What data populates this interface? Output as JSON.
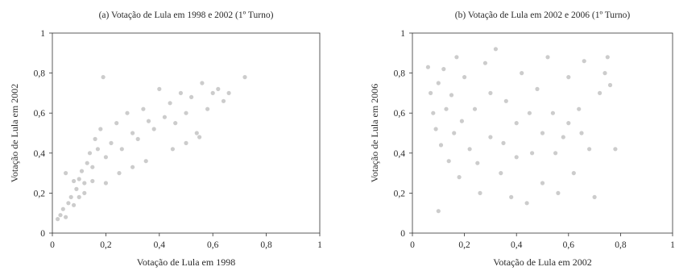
{
  "chart_data": [
    {
      "type": "scatter",
      "title": "(a) Votação de Lula em 1998 e 2002 (1º Turno)",
      "xlabel": "Votação de Lula em 1998",
      "ylabel": "Votação de Lula em 2002",
      "xlim": [
        0,
        1
      ],
      "ylim": [
        0,
        1
      ],
      "xticks": [
        "0",
        "0,2",
        "0,4",
        "0,6",
        "0,8",
        "1"
      ],
      "yticks": [
        "0",
        "0,2",
        "0,4",
        "0,6",
        "0,8",
        "1"
      ],
      "grid": false,
      "marker_color": "#cccccc",
      "points": [
        [
          0.02,
          0.07
        ],
        [
          0.03,
          0.09
        ],
        [
          0.04,
          0.12
        ],
        [
          0.05,
          0.08
        ],
        [
          0.06,
          0.15
        ],
        [
          0.07,
          0.18
        ],
        [
          0.08,
          0.14
        ],
        [
          0.09,
          0.22
        ],
        [
          0.1,
          0.27
        ],
        [
          0.11,
          0.31
        ],
        [
          0.12,
          0.25
        ],
        [
          0.13,
          0.35
        ],
        [
          0.14,
          0.4
        ],
        [
          0.15,
          0.33
        ],
        [
          0.16,
          0.47
        ],
        [
          0.17,
          0.42
        ],
        [
          0.18,
          0.52
        ],
        [
          0.19,
          0.78
        ],
        [
          0.2,
          0.38
        ],
        [
          0.22,
          0.45
        ],
        [
          0.24,
          0.55
        ],
        [
          0.26,
          0.42
        ],
        [
          0.28,
          0.6
        ],
        [
          0.3,
          0.5
        ],
        [
          0.32,
          0.47
        ],
        [
          0.34,
          0.62
        ],
        [
          0.36,
          0.56
        ],
        [
          0.38,
          0.52
        ],
        [
          0.4,
          0.72
        ],
        [
          0.42,
          0.58
        ],
        [
          0.44,
          0.65
        ],
        [
          0.46,
          0.55
        ],
        [
          0.48,
          0.7
        ],
        [
          0.5,
          0.6
        ],
        [
          0.52,
          0.68
        ],
        [
          0.54,
          0.5
        ],
        [
          0.56,
          0.75
        ],
        [
          0.58,
          0.62
        ],
        [
          0.6,
          0.7
        ],
        [
          0.62,
          0.72
        ],
        [
          0.64,
          0.66
        ],
        [
          0.66,
          0.7
        ],
        [
          0.72,
          0.78
        ],
        [
          0.2,
          0.25
        ],
        [
          0.25,
          0.3
        ],
        [
          0.3,
          0.33
        ],
        [
          0.35,
          0.36
        ],
        [
          0.45,
          0.42
        ],
        [
          0.5,
          0.45
        ],
        [
          0.55,
          0.48
        ],
        [
          0.12,
          0.2
        ],
        [
          0.15,
          0.26
        ],
        [
          0.1,
          0.18
        ],
        [
          0.08,
          0.26
        ],
        [
          0.05,
          0.3
        ]
      ]
    },
    {
      "type": "scatter",
      "title": "(b) Votação de Lula em 2002 e 2006 (1º Turno)",
      "xlabel": "Votação de Lula em 2002",
      "ylabel": "Votação de Lula em 2006",
      "xlim": [
        0,
        1
      ],
      "ylim": [
        0,
        1
      ],
      "xticks": [
        "0",
        "0,2",
        "0,4",
        "0,6",
        "0,8",
        "1"
      ],
      "yticks": [
        "0",
        "0,2",
        "0,4",
        "0,6",
        "0,8",
        "1"
      ],
      "grid": false,
      "marker_color": "#cccccc",
      "points": [
        [
          0.06,
          0.83
        ],
        [
          0.07,
          0.7
        ],
        [
          0.08,
          0.6
        ],
        [
          0.09,
          0.52
        ],
        [
          0.1,
          0.11
        ],
        [
          0.1,
          0.75
        ],
        [
          0.11,
          0.44
        ],
        [
          0.12,
          0.82
        ],
        [
          0.13,
          0.62
        ],
        [
          0.14,
          0.36
        ],
        [
          0.15,
          0.69
        ],
        [
          0.16,
          0.5
        ],
        [
          0.17,
          0.88
        ],
        [
          0.18,
          0.28
        ],
        [
          0.19,
          0.56
        ],
        [
          0.2,
          0.78
        ],
        [
          0.22,
          0.42
        ],
        [
          0.24,
          0.62
        ],
        [
          0.26,
          0.2
        ],
        [
          0.28,
          0.85
        ],
        [
          0.3,
          0.48
        ],
        [
          0.32,
          0.92
        ],
        [
          0.34,
          0.3
        ],
        [
          0.36,
          0.66
        ],
        [
          0.38,
          0.18
        ],
        [
          0.4,
          0.55
        ],
        [
          0.42,
          0.8
        ],
        [
          0.44,
          0.15
        ],
        [
          0.46,
          0.4
        ],
        [
          0.48,
          0.72
        ],
        [
          0.5,
          0.25
        ],
        [
          0.52,
          0.88
        ],
        [
          0.54,
          0.6
        ],
        [
          0.56,
          0.2
        ],
        [
          0.58,
          0.48
        ],
        [
          0.6,
          0.78
        ],
        [
          0.62,
          0.3
        ],
        [
          0.64,
          0.62
        ],
        [
          0.66,
          0.86
        ],
        [
          0.68,
          0.42
        ],
        [
          0.7,
          0.18
        ],
        [
          0.72,
          0.7
        ],
        [
          0.74,
          0.8
        ],
        [
          0.75,
          0.88
        ],
        [
          0.76,
          0.74
        ],
        [
          0.78,
          0.42
        ],
        [
          0.35,
          0.45
        ],
        [
          0.4,
          0.38
        ],
        [
          0.45,
          0.6
        ],
        [
          0.5,
          0.5
        ],
        [
          0.55,
          0.4
        ],
        [
          0.3,
          0.7
        ],
        [
          0.25,
          0.35
        ],
        [
          0.6,
          0.55
        ],
        [
          0.65,
          0.5
        ]
      ]
    }
  ]
}
